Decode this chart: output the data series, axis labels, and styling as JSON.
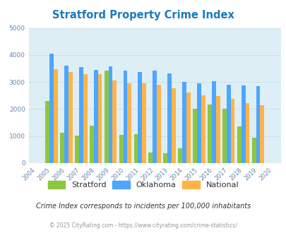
{
  "title": "Stratford Property Crime Index",
  "title_color": "#1a7abf",
  "years": [
    2004,
    2005,
    2006,
    2007,
    2008,
    2009,
    2010,
    2011,
    2012,
    2013,
    2014,
    2015,
    2016,
    2017,
    2018,
    2019,
    2020
  ],
  "stratford": [
    0,
    2300,
    1130,
    1010,
    1390,
    3420,
    1040,
    1070,
    400,
    360,
    560,
    2010,
    2170,
    2010,
    1370,
    950,
    0
  ],
  "oklahoma": [
    0,
    4060,
    3610,
    3560,
    3460,
    3570,
    3420,
    3360,
    3430,
    3310,
    3010,
    2940,
    3020,
    2890,
    2880,
    2840,
    0
  ],
  "national": [
    0,
    3470,
    3360,
    3280,
    3290,
    3060,
    2960,
    2960,
    2900,
    2760,
    2620,
    2500,
    2470,
    2380,
    2230,
    2140,
    0
  ],
  "stratford_color": "#8dc63f",
  "oklahoma_color": "#4da6ff",
  "national_color": "#ffb347",
  "bg_color": "#deeef5",
  "ylim": [
    0,
    5000
  ],
  "yticks": [
    0,
    1000,
    2000,
    3000,
    4000,
    5000
  ],
  "subtitle": "Crime Index corresponds to incidents per 100,000 inhabitants",
  "subtitle_color": "#333333",
  "footer": "© 2025 CityRating.com - https://www.cityrating.com/crime-statistics/",
  "footer_color": "#999999",
  "grid_color": "#c5dde8"
}
